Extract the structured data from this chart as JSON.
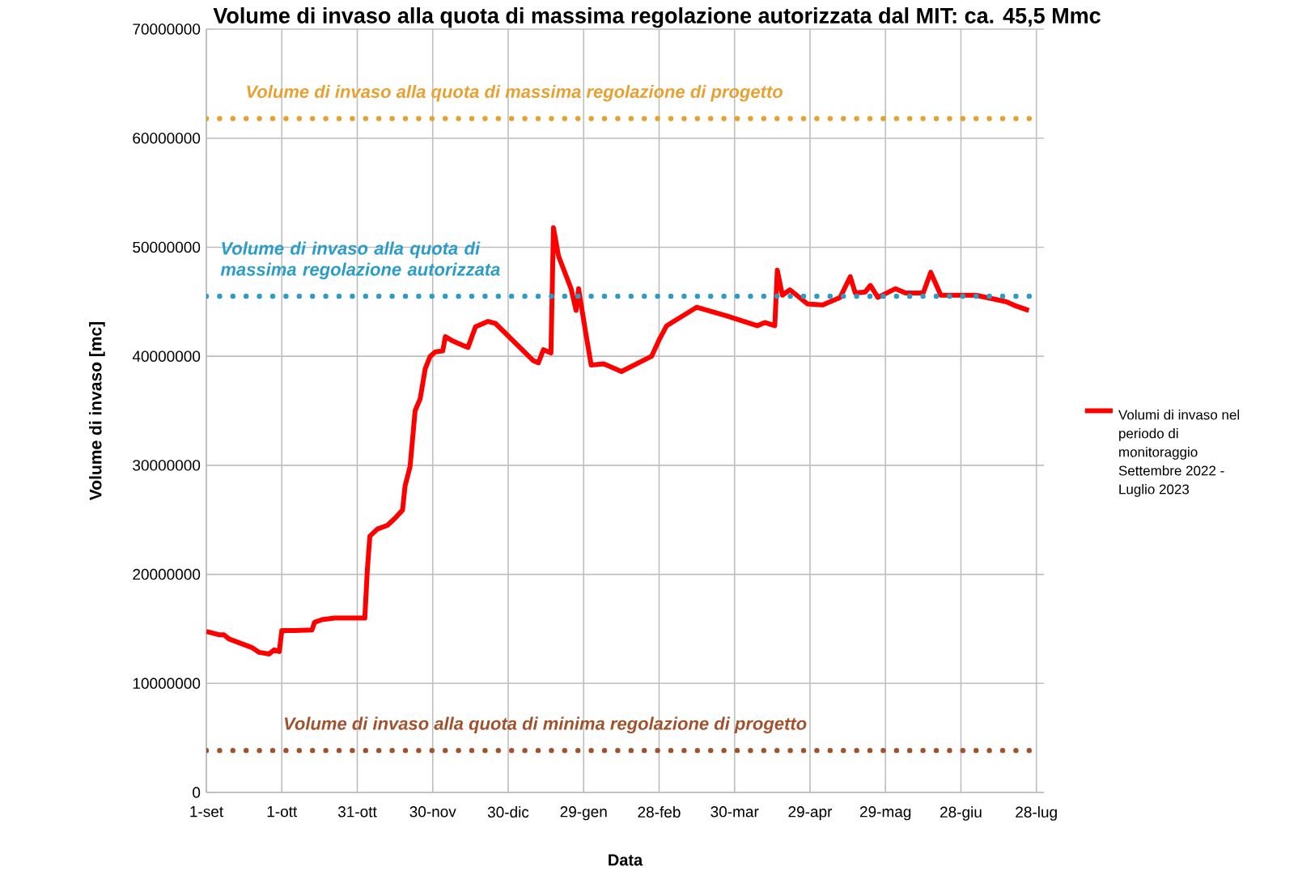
{
  "chart_data": {
    "type": "line",
    "title": "Volume di invaso alla quota di massima regolazione autorizzata dal MIT: ca. 45,5 Mmc",
    "xlabel": "Data",
    "ylabel": "Volume di invaso [mc]",
    "x": [
      "2022-09-01",
      "2022-09-06",
      "2022-09-08",
      "2022-09-10",
      "2022-09-19",
      "2022-09-22",
      "2022-09-26",
      "2022-09-28",
      "2022-09-30",
      "2022-10-01",
      "2022-10-06",
      "2022-10-13",
      "2022-10-14",
      "2022-10-17",
      "2022-10-22",
      "2022-11-03",
      "2022-11-04",
      "2022-11-05",
      "2022-11-08",
      "2022-11-12",
      "2022-11-15",
      "2022-11-18",
      "2022-11-19",
      "2022-11-21",
      "2022-11-23",
      "2022-11-25",
      "2022-11-27",
      "2022-11-29",
      "2022-12-01",
      "2022-12-04",
      "2022-12-05",
      "2022-12-08",
      "2022-12-12",
      "2022-12-14",
      "2022-12-17",
      "2022-12-22",
      "2022-12-25",
      "2023-01-09",
      "2023-01-11",
      "2023-01-13",
      "2023-01-16",
      "2023-01-17",
      "2023-01-19",
      "2023-01-24",
      "2023-01-26",
      "2023-01-27",
      "2023-01-30",
      "2023-02-01",
      "2023-02-06",
      "2023-02-13",
      "2023-02-25",
      "2023-02-28",
      "2023-03-03",
      "2023-03-15",
      "2023-03-27",
      "2023-04-08",
      "2023-04-11",
      "2023-04-15",
      "2023-04-16",
      "2023-04-18",
      "2023-04-21",
      "2023-04-28",
      "2023-05-04",
      "2023-05-11",
      "2023-05-15",
      "2023-05-17",
      "2023-05-21",
      "2023-05-23",
      "2023-05-26",
      "2023-06-02",
      "2023-06-06",
      "2023-06-13",
      "2023-06-16",
      "2023-06-20",
      "2023-07-04",
      "2023-07-16",
      "2023-07-20",
      "2023-07-25"
    ],
    "series": [
      {
        "name": "Volumi di invaso nel periodo di monitoraggio Settembre 2022 - Luglio 2023",
        "color": "#ff0000",
        "values": [
          14770000,
          14460000,
          14460000,
          14080000,
          13300000,
          12850000,
          12700000,
          13080000,
          12920000,
          14850000,
          14850000,
          14900000,
          15600000,
          15850000,
          16000000,
          16000000,
          20400000,
          23500000,
          24150000,
          24500000,
          25150000,
          25900000,
          28100000,
          29900000,
          35000000,
          36100000,
          38850000,
          40000000,
          40400000,
          40500000,
          41800000,
          41400000,
          41000000,
          40800000,
          42700000,
          43200000,
          43000000,
          39600000,
          39400000,
          40600000,
          40300000,
          51800000,
          49200000,
          46200000,
          44200000,
          46200000,
          41900000,
          39200000,
          39300000,
          38600000,
          40000000,
          41500000,
          42800000,
          44500000,
          43700000,
          42800000,
          43100000,
          42800000,
          47900000,
          45600000,
          46100000,
          44800000,
          44700000,
          45400000,
          47300000,
          45800000,
          45900000,
          46500000,
          45400000,
          46200000,
          45800000,
          45800000,
          47700000,
          45600000,
          45600000,
          45000000,
          44600000,
          44200000
        ]
      }
    ],
    "xlim": [
      "2022-09-01",
      "2023-07-31"
    ],
    "xticks": [
      {
        "value": "2022-09-01",
        "label": "1-set"
      },
      {
        "value": "2022-10-01",
        "label": "1-ott"
      },
      {
        "value": "2022-10-31",
        "label": "31-ott"
      },
      {
        "value": "2022-11-30",
        "label": "30-nov"
      },
      {
        "value": "2022-12-30",
        "label": "30-dic"
      },
      {
        "value": "2023-01-29",
        "label": "29-gen"
      },
      {
        "value": "2023-02-28",
        "label": "28-feb"
      },
      {
        "value": "2023-03-30",
        "label": "30-mar"
      },
      {
        "value": "2023-04-29",
        "label": "29-apr"
      },
      {
        "value": "2023-05-29",
        "label": "29-mag"
      },
      {
        "value": "2023-06-28",
        "label": "28-giu"
      },
      {
        "value": "2023-07-28",
        "label": "28-lug"
      }
    ],
    "ylim": [
      0,
      70000000
    ],
    "yticks": [
      0,
      10000000,
      20000000,
      30000000,
      40000000,
      50000000,
      60000000,
      70000000
    ],
    "ref_lines": [
      {
        "axis": "y",
        "value": 61800000,
        "label": "Volume di invaso alla quota di massima regolazione di progetto",
        "color": "#e8a030",
        "line_style": "dotted"
      },
      {
        "axis": "y",
        "value": 45500000,
        "label": "Volume di invaso alla quota di massima regolazione autorizzata",
        "color": "#2a9cc8",
        "line_style": "dotted"
      },
      {
        "axis": "y",
        "value": 3850000,
        "label": "Volume di invaso alla quota di minima regolazione di progetto",
        "color": "#a0522d",
        "line_style": "dotted"
      }
    ],
    "grid": true,
    "legend": "right",
    "marker": "none",
    "line_style": "solid"
  }
}
